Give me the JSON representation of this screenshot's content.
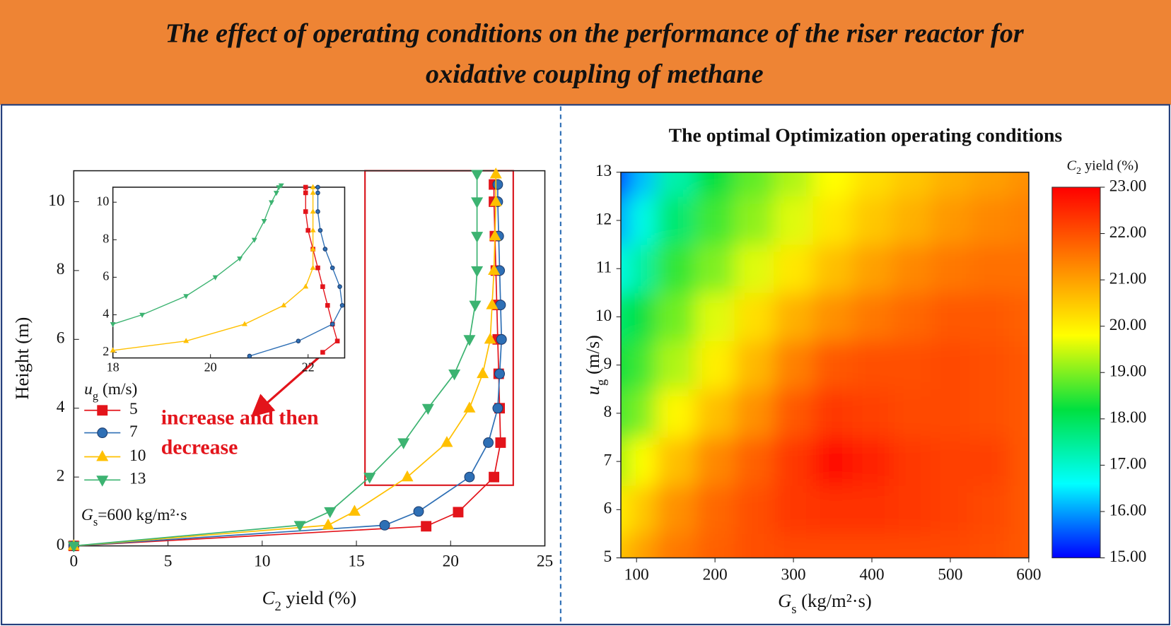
{
  "header": {
    "title": [
      "The effect of operating conditions on the performance of the riser reactor for",
      "oxidative coupling of methane"
    ]
  },
  "chart_data": [
    {
      "type": "line",
      "xlabel": [
        "C",
        {
          "sub": "2"
        },
        " yield (%)"
      ],
      "ylabel": "Height (m)",
      "xlim": [
        0,
        25
      ],
      "ylim": [
        0,
        10.9
      ],
      "xticks": [
        0,
        5,
        10,
        15,
        20,
        25
      ],
      "yticks": [
        0,
        2,
        4,
        6,
        8,
        10
      ],
      "legend": true,
      "legend_title": [
        "u",
        {
          "sub": "g"
        },
        " (m/s)"
      ],
      "annotation": [
        "increase and then",
        "decrease"
      ],
      "note": [
        "G",
        {
          "sub": "s"
        },
        "=600 kg/m²·s"
      ],
      "series": [
        {
          "name": "5",
          "color": "#e3141b",
          "marker": "square",
          "x": [
            0,
            18.7,
            20.4,
            22.3,
            22.65,
            22.6,
            22.55,
            22.5,
            22.45,
            22.4,
            22.35,
            22.3,
            22.3
          ],
          "values": [
            0,
            0.57,
            0.98,
            2,
            3,
            4,
            5,
            6,
            7,
            8,
            9,
            10,
            10.5
          ]
        },
        {
          "name": "7",
          "color": "#2e6fb5",
          "marker": "circle",
          "x": [
            0,
            16.5,
            18.3,
            21.0,
            22.0,
            22.5,
            22.6,
            22.7,
            22.65,
            22.6,
            22.55,
            22.5,
            22.5
          ],
          "values": [
            0,
            0.6,
            1.0,
            2,
            3,
            4,
            5,
            6,
            7,
            8,
            9,
            10,
            10.5
          ]
        },
        {
          "name": "10",
          "color": "#ffc000",
          "marker": "triangle-up",
          "x": [
            0,
            13.5,
            14.9,
            17.7,
            19.8,
            21.0,
            21.7,
            22.1,
            22.2,
            22.3,
            22.35,
            22.4,
            22.4
          ],
          "values": [
            0,
            0.6,
            1.0,
            2,
            3,
            4,
            5,
            6,
            7,
            8,
            9,
            10,
            10.8
          ]
        },
        {
          "name": "13",
          "color": "#3cb371",
          "marker": "triangle-down",
          "x": [
            0,
            12.0,
            13.6,
            15.7,
            17.5,
            18.8,
            20.2,
            21.0,
            21.3,
            21.4,
            21.4,
            21.4,
            21.4
          ],
          "values": [
            0,
            0.6,
            1.0,
            2,
            3,
            4,
            5,
            6,
            7,
            8,
            9,
            10,
            10.8
          ]
        }
      ]
    },
    {
      "type": "line",
      "xlim": [
        18,
        22.75
      ],
      "ylim": [
        1.7,
        10.8
      ],
      "xticks": [
        18,
        20,
        22
      ],
      "yticks": [
        2,
        4,
        6,
        8,
        10
      ],
      "series": [
        {
          "color": "#e3141b",
          "marker": "square",
          "x": [
            22.3,
            22.6,
            22.5,
            22.4,
            22.3,
            22.2,
            22.1,
            22.0,
            21.95,
            21.95,
            21.95
          ],
          "values": [
            2.0,
            2.6,
            3.5,
            4.5,
            5.5,
            6.5,
            7.5,
            8.5,
            9.5,
            10.5,
            10.8
          ]
        },
        {
          "color": "#2e6fb5",
          "marker": "circle",
          "x": [
            20.8,
            21.8,
            22.5,
            22.7,
            22.65,
            22.5,
            22.35,
            22.25,
            22.2,
            22.2,
            22.2
          ],
          "values": [
            1.8,
            2.6,
            3.5,
            4.5,
            5.5,
            6.5,
            7.5,
            8.5,
            9.5,
            10.5,
            10.8
          ]
        },
        {
          "color": "#ffc000",
          "marker": "triangle-up",
          "x": [
            18.0,
            19.5,
            20.7,
            21.5,
            21.95,
            22.1,
            22.1,
            22.1,
            22.1,
            22.1,
            22.1
          ],
          "values": [
            2.1,
            2.6,
            3.5,
            4.5,
            5.5,
            6.5,
            7.5,
            8.5,
            9.5,
            10.5,
            10.8
          ]
        },
        {
          "color": "#3cb371",
          "marker": "triangle-down",
          "x": [
            18.0,
            18.6,
            19.5,
            20.1,
            20.6,
            20.9,
            21.1,
            21.25,
            21.35,
            21.4,
            21.45
          ],
          "values": [
            3.5,
            4.0,
            5.0,
            6.0,
            7.0,
            8.0,
            9.0,
            10.0,
            10.5,
            10.8,
            10.9
          ]
        }
      ]
    },
    {
      "type": "contour",
      "title": "The optimal Optimization operating conditions",
      "xlabel": [
        "G",
        {
          "sub": "s"
        },
        " (kg/m²·s)"
      ],
      "ylabel": [
        "u",
        {
          "sub": "g"
        },
        " (m/s)"
      ],
      "xlim": [
        80,
        600
      ],
      "ylim": [
        5,
        13
      ],
      "xticks": [
        100,
        200,
        300,
        400,
        500,
        600
      ],
      "yticks": [
        5,
        6,
        7,
        8,
        9,
        10,
        11,
        12,
        13
      ],
      "colorbar_title": [
        "C",
        {
          "sub": "2"
        },
        " yield (%)"
      ],
      "zlim": [
        15,
        23
      ],
      "zticks": [
        {
          "value": 15,
          "label": "15.00"
        },
        {
          "value": 16,
          "label": "16.00"
        },
        {
          "value": 17,
          "label": "17.00"
        },
        {
          "value": 18,
          "label": "18.00"
        },
        {
          "value": 19,
          "label": "19.00"
        },
        {
          "value": 20,
          "label": "20.00"
        },
        {
          "value": 21,
          "label": "21.00"
        },
        {
          "value": 22,
          "label": "22.00"
        },
        {
          "value": 23,
          "label": "23.00"
        }
      ],
      "colormap": [
        "#0000ff",
        "#00ffff",
        "#00e040",
        "#ffff00",
        "#ff8000",
        "#ff0000"
      ],
      "x": [
        80,
        100,
        150,
        200,
        250,
        300,
        350,
        400,
        450,
        500,
        550,
        600
      ],
      "y": [
        5,
        6,
        7,
        8,
        9,
        10,
        11,
        12,
        13
      ],
      "z": [
        [
          20.5,
          21.0,
          21.5,
          21.8,
          22.0,
          22.1,
          22.1,
          22.1,
          22.1,
          22.1,
          22.0,
          21.9
        ],
        [
          20.0,
          20.5,
          21.2,
          21.7,
          22.0,
          22.3,
          22.4,
          22.4,
          22.3,
          22.2,
          22.1,
          21.9
        ],
        [
          19.2,
          19.8,
          20.6,
          21.3,
          21.8,
          22.3,
          22.8,
          22.6,
          22.3,
          22.2,
          22.2,
          21.9
        ],
        [
          18.6,
          19.0,
          19.9,
          20.6,
          21.2,
          21.9,
          22.3,
          22.2,
          22.1,
          22.1,
          22.0,
          21.9
        ],
        [
          18.2,
          18.6,
          19.3,
          20.0,
          20.7,
          21.4,
          21.9,
          22.0,
          22.0,
          22.1,
          22.0,
          21.9
        ],
        [
          17.8,
          18.2,
          18.9,
          19.6,
          20.2,
          20.8,
          21.2,
          21.5,
          21.7,
          21.9,
          21.9,
          21.8
        ],
        [
          16.8,
          17.4,
          18.5,
          19.0,
          19.6,
          20.1,
          20.6,
          21.0,
          21.3,
          21.5,
          21.6,
          21.6
        ],
        [
          16.0,
          16.8,
          17.8,
          18.6,
          19.1,
          19.6,
          20.1,
          20.5,
          20.8,
          21.1,
          21.3,
          21.4
        ],
        [
          15.2,
          16.2,
          17.3,
          18.2,
          18.8,
          19.3,
          19.8,
          20.2,
          20.5,
          20.8,
          21.0,
          21.2
        ]
      ]
    }
  ]
}
